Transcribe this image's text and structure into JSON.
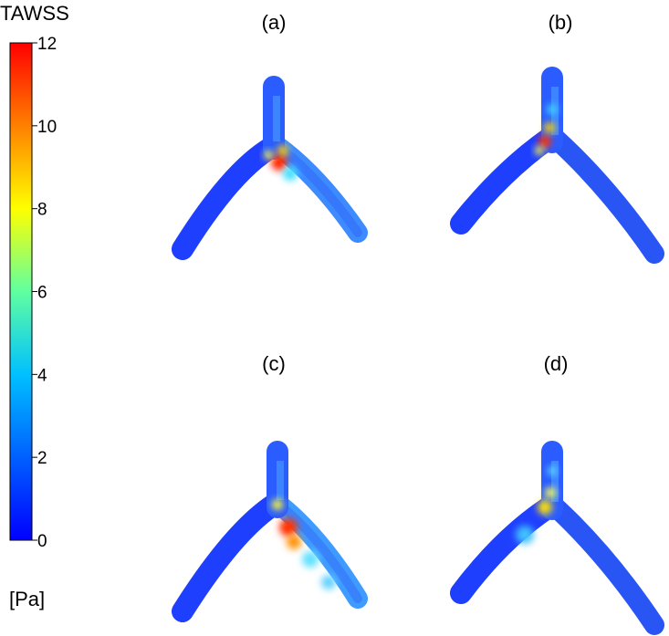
{
  "colorbar": {
    "title": "TAWSS",
    "unit": "[Pa]",
    "min": 0,
    "max": 12,
    "ticks": [
      "0",
      "2",
      "4",
      "6",
      "8",
      "10",
      "12"
    ],
    "colormap": [
      "#0000ff",
      "#0080ff",
      "#00ffff",
      "#80ff80",
      "#ffff00",
      "#ff8000",
      "#ff0000"
    ]
  },
  "panels": [
    {
      "label": "(a)",
      "variant": "a"
    },
    {
      "label": "(b)",
      "variant": "b"
    },
    {
      "label": "(c)",
      "variant": "c"
    },
    {
      "label": "(d)",
      "variant": "d"
    }
  ]
}
